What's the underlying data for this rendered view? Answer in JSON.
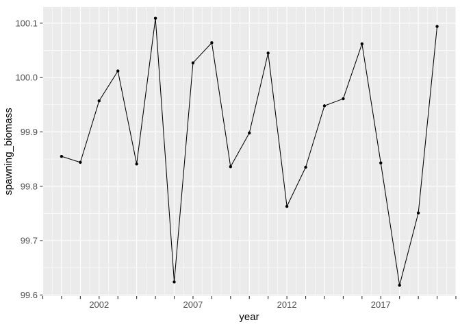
{
  "chart_data": {
    "type": "line",
    "title": "",
    "xlabel": "year",
    "ylabel": "spawning_biomass",
    "x": [
      2000,
      2001,
      2002,
      2003,
      2004,
      2005,
      2006,
      2007,
      2008,
      2009,
      2010,
      2011,
      2012,
      2013,
      2014,
      2015,
      2016,
      2017,
      2018,
      2019,
      2020
    ],
    "y": [
      99.855,
      99.844,
      99.957,
      100.012,
      99.841,
      100.109,
      99.624,
      100.027,
      100.064,
      99.836,
      99.898,
      100.045,
      99.763,
      99.835,
      99.948,
      99.961,
      100.062,
      99.843,
      99.618,
      99.751,
      100.094
    ],
    "xlim": [
      1999,
      2021
    ],
    "ylim": [
      99.598,
      100.13
    ],
    "x_tick_every_year_from": 1999,
    "x_tick_every_year_to": 2021,
    "x_labeled_ticks": [
      2002,
      2007,
      2012,
      2017
    ],
    "y_tick_labels": [
      "99.6",
      "99.7",
      "99.8",
      "99.9",
      "100.0",
      "100.1"
    ],
    "grid": "major-and-minor",
    "legend": "none",
    "marker": "point",
    "style": {
      "panel_bg": "#EBEBEB",
      "grid_color": "#FFFFFF",
      "line_color": "#000000",
      "point_color": "#000000",
      "tick_mark_color": "#333333",
      "tick_label_color": "#4D4D4D",
      "axis_title_color": "#000000",
      "figure_bg": "#FFFFFF"
    }
  }
}
